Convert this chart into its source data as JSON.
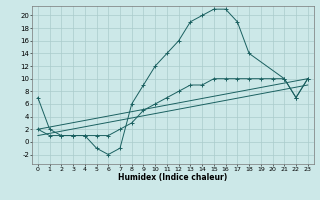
{
  "xlabel": "Humidex (Indice chaleur)",
  "bg_color": "#cce8e8",
  "grid_color": "#aacccc",
  "line_color": "#1a6060",
  "xlim": [
    -0.5,
    23.5
  ],
  "ylim": [
    -3.5,
    21.5
  ],
  "xticks": [
    0,
    1,
    2,
    3,
    4,
    5,
    6,
    7,
    8,
    9,
    10,
    11,
    12,
    13,
    14,
    15,
    16,
    17,
    18,
    19,
    20,
    21,
    22,
    23
  ],
  "yticks": [
    -2,
    0,
    2,
    4,
    6,
    8,
    10,
    12,
    14,
    16,
    18,
    20
  ],
  "line1_x": [
    0,
    1,
    2,
    3,
    4,
    5,
    6,
    7,
    8,
    9,
    10,
    11,
    12,
    13,
    14,
    15,
    16,
    17,
    18,
    21,
    22,
    23
  ],
  "line1_y": [
    7,
    2,
    1,
    1,
    1,
    -1,
    -2,
    -1,
    6,
    9,
    12,
    14,
    16,
    19,
    20,
    21,
    21,
    19,
    14,
    10,
    7,
    10
  ],
  "line2_x": [
    0,
    1,
    2,
    3,
    4,
    5,
    6,
    7,
    8,
    9,
    10,
    11,
    12,
    13,
    14,
    15,
    16,
    17,
    18,
    19,
    20,
    21,
    22,
    23
  ],
  "line2_y": [
    2,
    1,
    1,
    1,
    1,
    1,
    1,
    2,
    3,
    5,
    6,
    7,
    8,
    9,
    9,
    10,
    10,
    10,
    10,
    10,
    10,
    10,
    7,
    10
  ],
  "line3_x": [
    0,
    23
  ],
  "line3_y": [
    2,
    10
  ],
  "line4_x": [
    0,
    23
  ],
  "line4_y": [
    1,
    9
  ]
}
